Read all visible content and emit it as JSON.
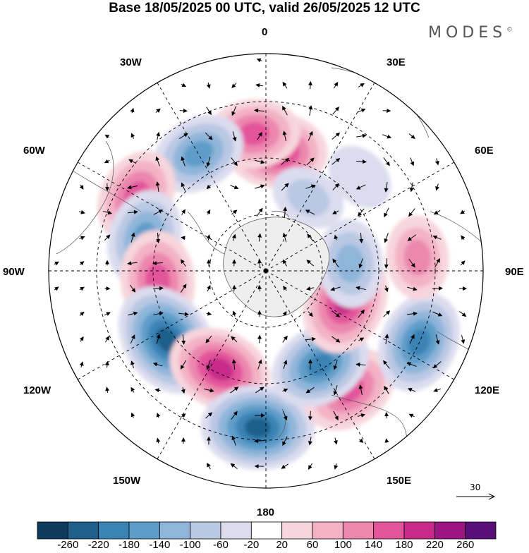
{
  "title": "Base 18/05/2025 00 UTC, valid 26/05/2025 12 UTC",
  "brand": "MODES",
  "brand_mark": "©",
  "lon_labels": {
    "north": "0",
    "ne30": "30E",
    "ne60": "60E",
    "east": "90E",
    "se120": "120E",
    "se150": "150E",
    "south": "180",
    "sw150": "150W",
    "sw120": "120W",
    "west": "90W",
    "nw60": "60W",
    "nw30": "30W"
  },
  "vector_reference": "30",
  "colorbar": {
    "colors": [
      "#0e3b5c",
      "#1f5f8b",
      "#3b83b5",
      "#5f9dc9",
      "#8fb5da",
      "#b9c8e3",
      "#dcdcef",
      "#ffffff",
      "#f7d5dc",
      "#f3b2c6",
      "#ec87ae",
      "#e3559b",
      "#c82a8a",
      "#9c1583",
      "#5a0f78"
    ],
    "tick_labels": [
      "-260",
      "-220",
      "-180",
      "-140",
      "-100",
      "-60",
      "-20",
      "20",
      "60",
      "100",
      "140",
      "180",
      "220",
      "260"
    ]
  },
  "map": {
    "projection": "south polar stereographic",
    "ocean_color": "#ffffff",
    "land_color": "#eeeeee",
    "anomaly_centers": [
      {
        "lon": 5,
        "lat": -40,
        "sign": "positive",
        "value": 200
      },
      {
        "lon": 355,
        "lat": -33,
        "sign": "positive",
        "value": 160
      },
      {
        "lon": 330,
        "lat": -34,
        "sign": "negative",
        "value": -170
      },
      {
        "lon": 300,
        "lat": -28,
        "sign": "positive",
        "value": 170
      },
      {
        "lon": 285,
        "lat": -38,
        "sign": "negative",
        "value": -180
      },
      {
        "lon": 265,
        "lat": -45,
        "sign": "positive",
        "value": 190
      },
      {
        "lon": 235,
        "lat": -40,
        "sign": "negative",
        "value": -260
      },
      {
        "lon": 205,
        "lat": -45,
        "sign": "positive",
        "value": 210
      },
      {
        "lon": 183,
        "lat": -25,
        "sign": "negative",
        "value": -250
      },
      {
        "lon": 145,
        "lat": -30,
        "sign": "positive",
        "value": 180
      },
      {
        "lon": 150,
        "lat": -45,
        "sign": "negative",
        "value": -200
      },
      {
        "lon": 115,
        "lat": -20,
        "sign": "negative",
        "value": -200
      },
      {
        "lon": 110,
        "lat": -55,
        "sign": "positive",
        "value": 230
      },
      {
        "lon": 85,
        "lat": -27,
        "sign": "positive",
        "value": 120
      },
      {
        "lon": 85,
        "lat": -55,
        "sign": "negative",
        "value": -140
      },
      {
        "lon": 30,
        "lat": -55,
        "sign": "negative",
        "value": -80
      },
      {
        "lon": 45,
        "lat": -35,
        "sign": "negative",
        "value": -60
      }
    ]
  }
}
